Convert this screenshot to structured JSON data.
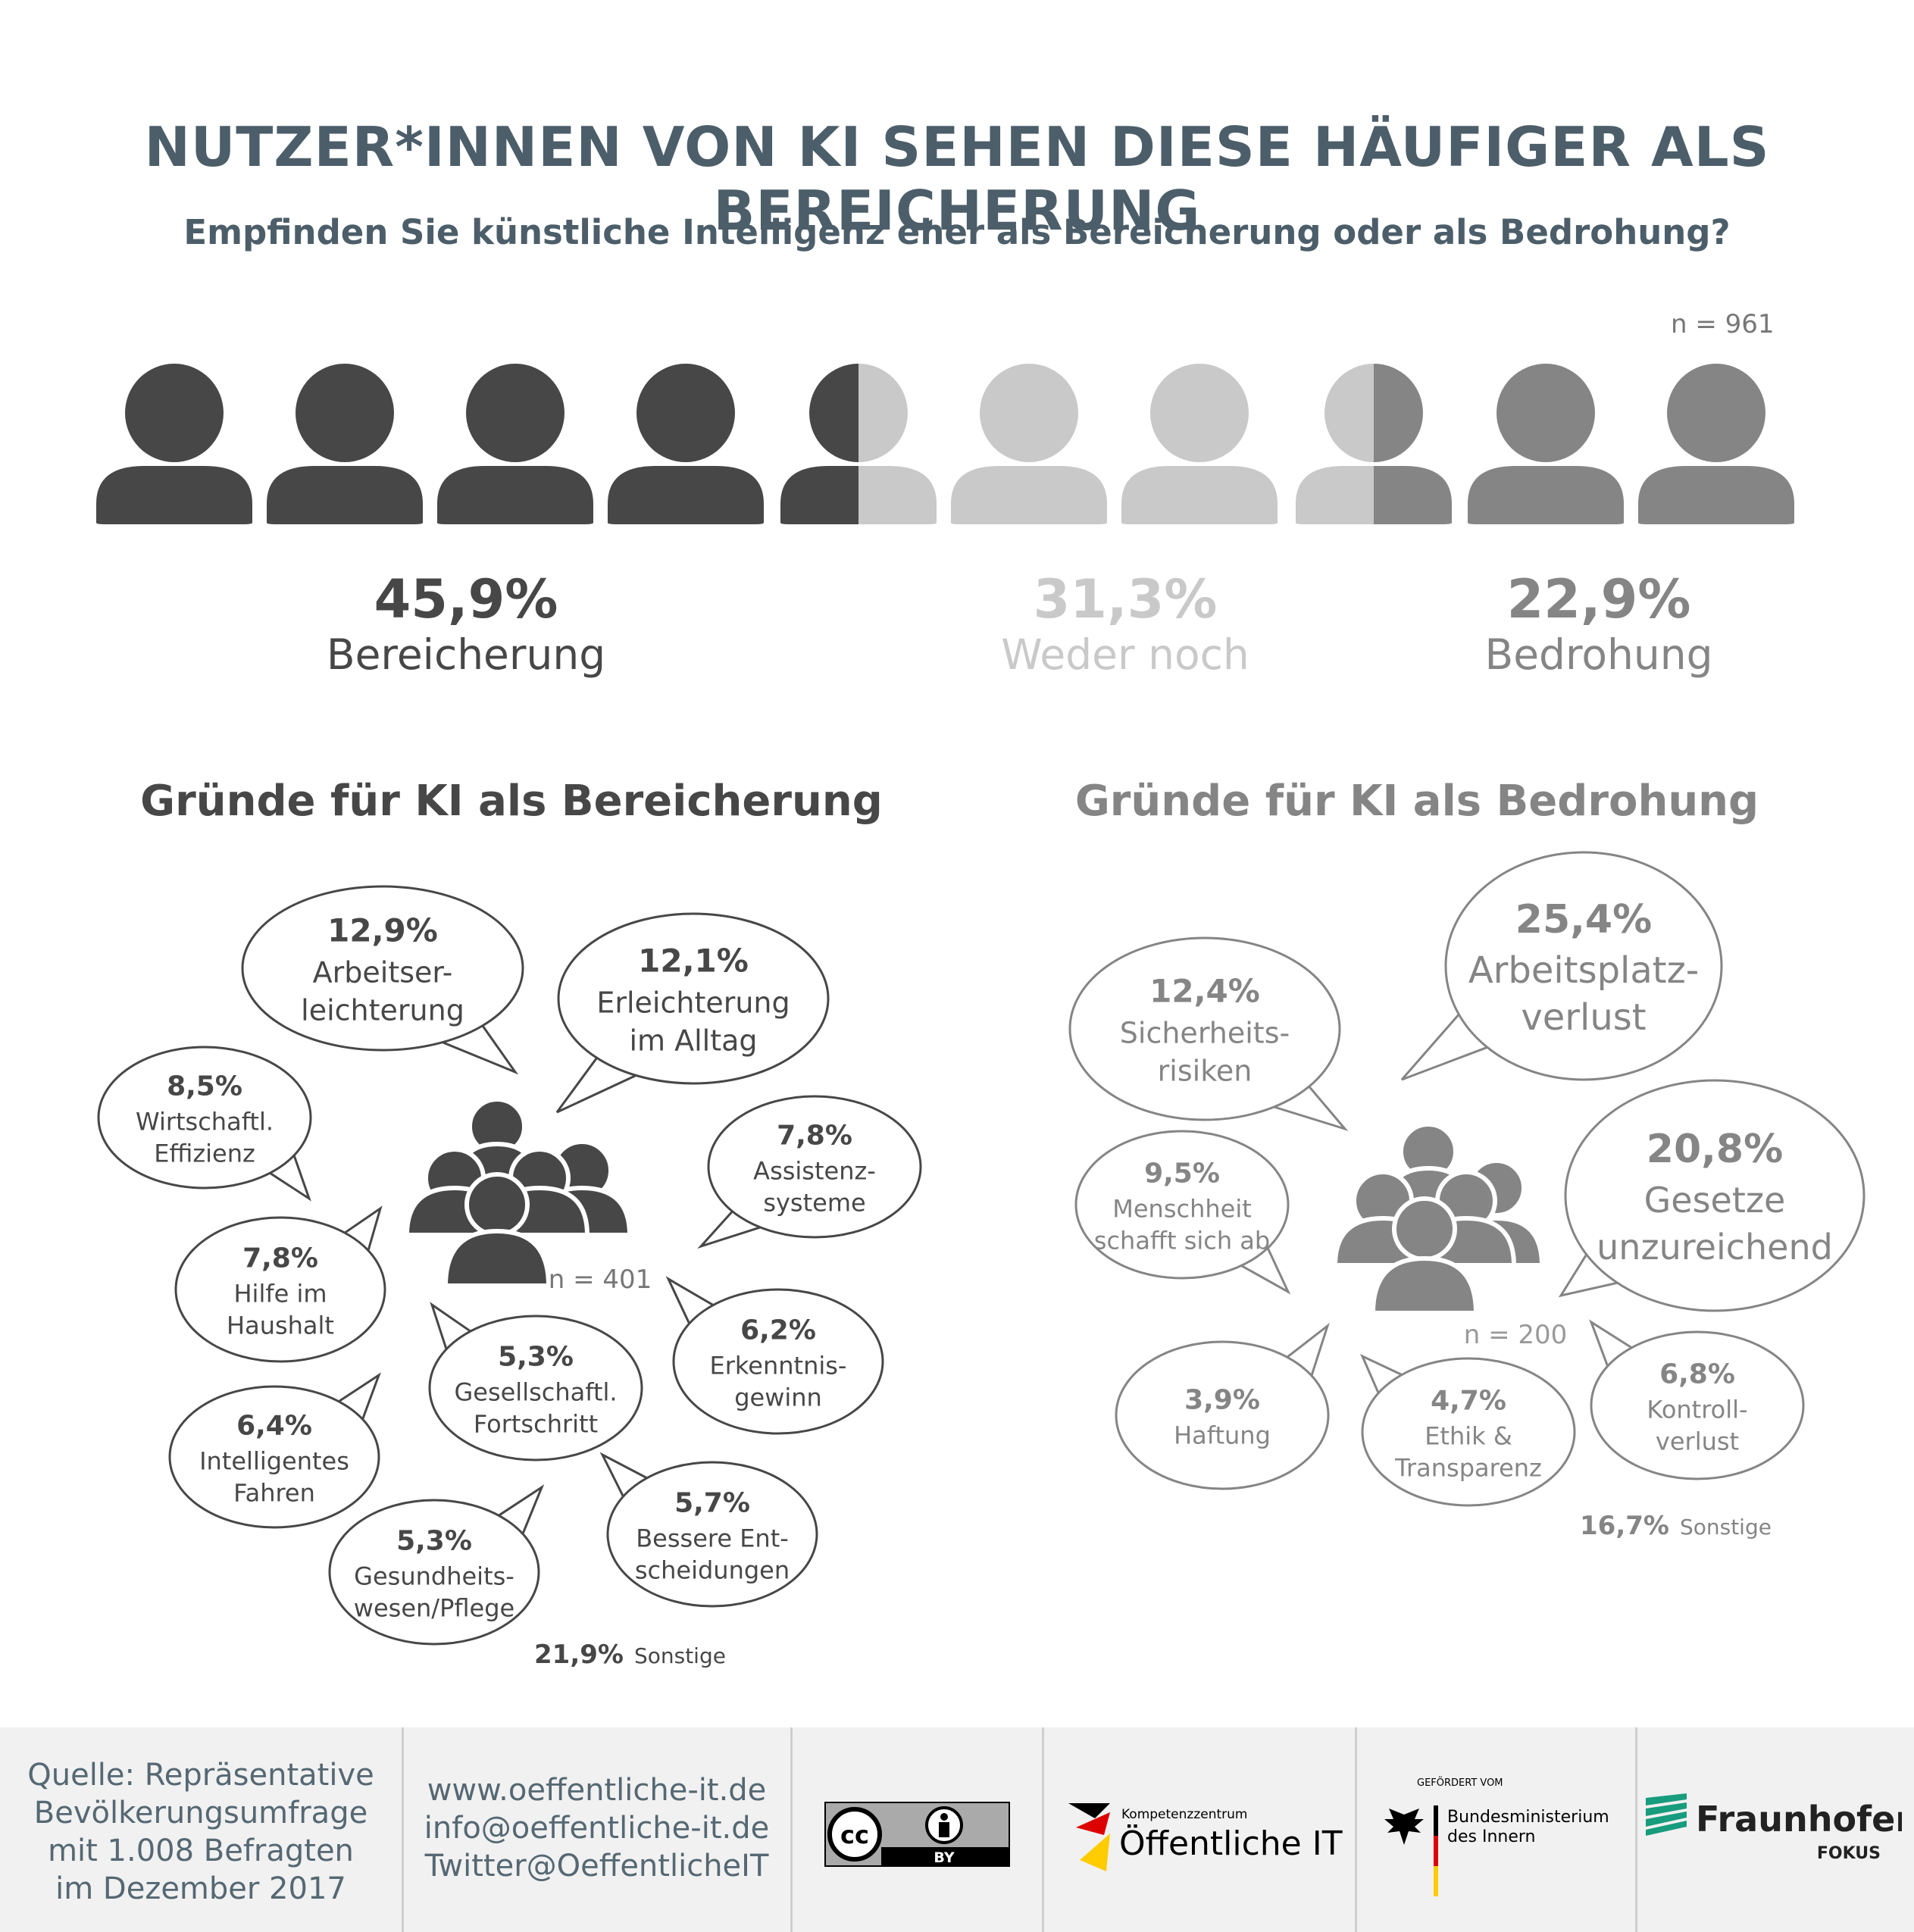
{
  "title": "NUTZER*INNEN VON KI SEHEN DIESE HÄUFIGER ALS BEREICHERUNG",
  "subtitle": "Empfinden Sie künstliche Intelligenz eher als Bereicherung oder als Bedrohung?",
  "n_total": "n = 961",
  "colors": {
    "enrichment": "#474747",
    "neutral": "#c9c9c9",
    "threat": "#858585",
    "title": "#4c5e69"
  },
  "summary": [
    {
      "pct": "45,9%",
      "label": "Bereicherung",
      "value": 45.9
    },
    {
      "pct": "31,3%",
      "label": "Weder noch",
      "value": 31.3
    },
    {
      "pct": "22,9%",
      "label": "Bedrohung",
      "value": 22.9
    }
  ],
  "enrichment_section": {
    "title": "Gründe für KI als Bereicherung",
    "n": "n = 401",
    "other": {
      "pct": "21,9%",
      "label": "Sonstige"
    },
    "reasons": [
      {
        "pct": "12,9%",
        "lines": [
          "Arbeitser-",
          "leichterung"
        ]
      },
      {
        "pct": "12,1%",
        "lines": [
          "Erleichterung",
          "im Alltag"
        ]
      },
      {
        "pct": "8,5%",
        "lines": [
          "Wirtschaftl.",
          "Effizienz"
        ]
      },
      {
        "pct": "7,8%",
        "lines": [
          "Assistenz-",
          "systeme"
        ]
      },
      {
        "pct": "7,8%",
        "lines": [
          "Hilfe im",
          "Haushalt"
        ]
      },
      {
        "pct": "6,2%",
        "lines": [
          "Erkenntnis-",
          "gewinn"
        ]
      },
      {
        "pct": "5,3%",
        "lines": [
          "Gesellschaftl.",
          "Fortschritt"
        ]
      },
      {
        "pct": "6,4%",
        "lines": [
          "Intelligentes",
          "Fahren"
        ]
      },
      {
        "pct": "5,7%",
        "lines": [
          "Bessere Ent-",
          "scheidungen"
        ]
      },
      {
        "pct": "5,3%",
        "lines": [
          "Gesundheits-",
          "wesen/Pflege"
        ]
      }
    ]
  },
  "threat_section": {
    "title": "Gründe für KI als Bedrohung",
    "n": "n = 200",
    "other": {
      "pct": "16,7%",
      "label": "Sonstige"
    },
    "reasons": [
      {
        "pct": "25,4%",
        "lines": [
          "Arbeitsplatz-",
          "verlust"
        ]
      },
      {
        "pct": "12,4%",
        "lines": [
          "Sicherheits-",
          "risiken"
        ]
      },
      {
        "pct": "20,8%",
        "lines": [
          "Gesetze",
          "unzureichend"
        ]
      },
      {
        "pct": "9,5%",
        "lines": [
          "Menschheit",
          "schafft sich ab"
        ]
      },
      {
        "pct": "3,9%",
        "lines": [
          "Haftung"
        ]
      },
      {
        "pct": "4,7%",
        "lines": [
          "Ethik &",
          "Transparenz"
        ]
      },
      {
        "pct": "6,8%",
        "lines": [
          "Kontroll-",
          "verlust"
        ]
      }
    ]
  },
  "footer": {
    "source_lines": [
      "Quelle: Repräsentative",
      "Bevölkerungsumfrage",
      "mit 1.008 Befragten",
      "im Dezember 2017"
    ],
    "contact_lines": [
      "www.oeffentliche-it.de",
      "info@oeffentliche-it.de",
      "Twitter@OeffentlicheIT"
    ],
    "license": {
      "cc": "cc",
      "by": "BY"
    },
    "kompetenz": {
      "small": "Kompetenzzentrum",
      "big": "Öffentliche IT"
    },
    "bmi": {
      "funded": "GEFÖRDERT VOM",
      "line1": "Bundesministerium",
      "line2": "des Innern"
    },
    "fraunhofer": {
      "name": "Fraunhofer",
      "sub": "FOKUS"
    }
  }
}
